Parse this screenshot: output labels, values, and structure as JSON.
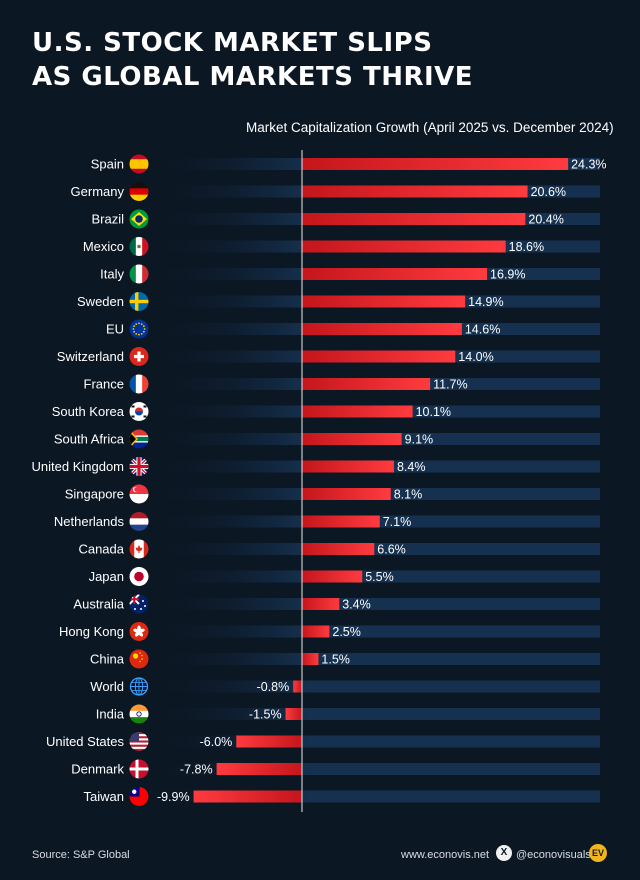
{
  "title": {
    "line1": "U.S. STOCK MARKET SLIPS",
    "line2": "AS GLOBAL MARKETS THRIVE"
  },
  "axis_label": "Market Capitalization Growth (April 2025 vs. December 2024)",
  "footer": {
    "source": "Source: S&P Global",
    "website": "www.econovis.net",
    "x_icon_glyph": "X",
    "handle": "@econovisuals",
    "logo_text": "EV"
  },
  "colors": {
    "background": "#0c1724",
    "bar_positive": "#e01b22",
    "bar_track": "#15314f",
    "text": "#ffffff"
  },
  "chart_data": {
    "type": "bar",
    "orientation": "horizontal",
    "title": "U.S. STOCK MARKET SLIPS AS GLOBAL MARKETS THRIVE",
    "xlabel": "Market Capitalization Growth (April 2025 vs. December 2024)",
    "unit": "%",
    "xlim": [
      -10,
      25
    ],
    "categories": [
      "Spain",
      "Germany",
      "Brazil",
      "Mexico",
      "Italy",
      "Sweden",
      "EU",
      "Switzerland",
      "France",
      "South Korea",
      "South Africa",
      "United Kingdom",
      "Singapore",
      "Netherlands",
      "Canada",
      "Japan",
      "Australia",
      "Hong Kong",
      "China",
      "World",
      "India",
      "United States",
      "Denmark",
      "Taiwan"
    ],
    "values": [
      24.3,
      20.6,
      20.4,
      18.6,
      16.9,
      14.9,
      14.6,
      14.0,
      11.7,
      10.1,
      9.1,
      8.4,
      8.1,
      7.1,
      6.6,
      5.5,
      3.4,
      2.5,
      1.5,
      -0.8,
      -1.5,
      -6.0,
      -7.8,
      -9.9
    ],
    "labels": [
      "24.3%",
      "20.6%",
      "20.4%",
      "18.6%",
      "16.9%",
      "14.9%",
      "14.6%",
      "14.0%",
      "11.7%",
      "10.1%",
      "9.1%",
      "8.4%",
      "8.1%",
      "7.1%",
      "6.6%",
      "5.5%",
      "3.4%",
      "2.5%",
      "1.5%",
      "-0.8%",
      "-1.5%",
      "-6.0%",
      "-7.8%",
      "-9.9%"
    ],
    "flag_icons": [
      "spain-flag-icon",
      "germany-flag-icon",
      "brazil-flag-icon",
      "mexico-flag-icon",
      "italy-flag-icon",
      "sweden-flag-icon",
      "eu-flag-icon",
      "switzerland-flag-icon",
      "france-flag-icon",
      "south-korea-flag-icon",
      "south-africa-flag-icon",
      "united-kingdom-flag-icon",
      "singapore-flag-icon",
      "netherlands-flag-icon",
      "canada-flag-icon",
      "japan-flag-icon",
      "australia-flag-icon",
      "hong-kong-flag-icon",
      "china-flag-icon",
      "world-globe-icon",
      "india-flag-icon",
      "united-states-flag-icon",
      "denmark-flag-icon",
      "taiwan-flag-icon"
    ]
  }
}
